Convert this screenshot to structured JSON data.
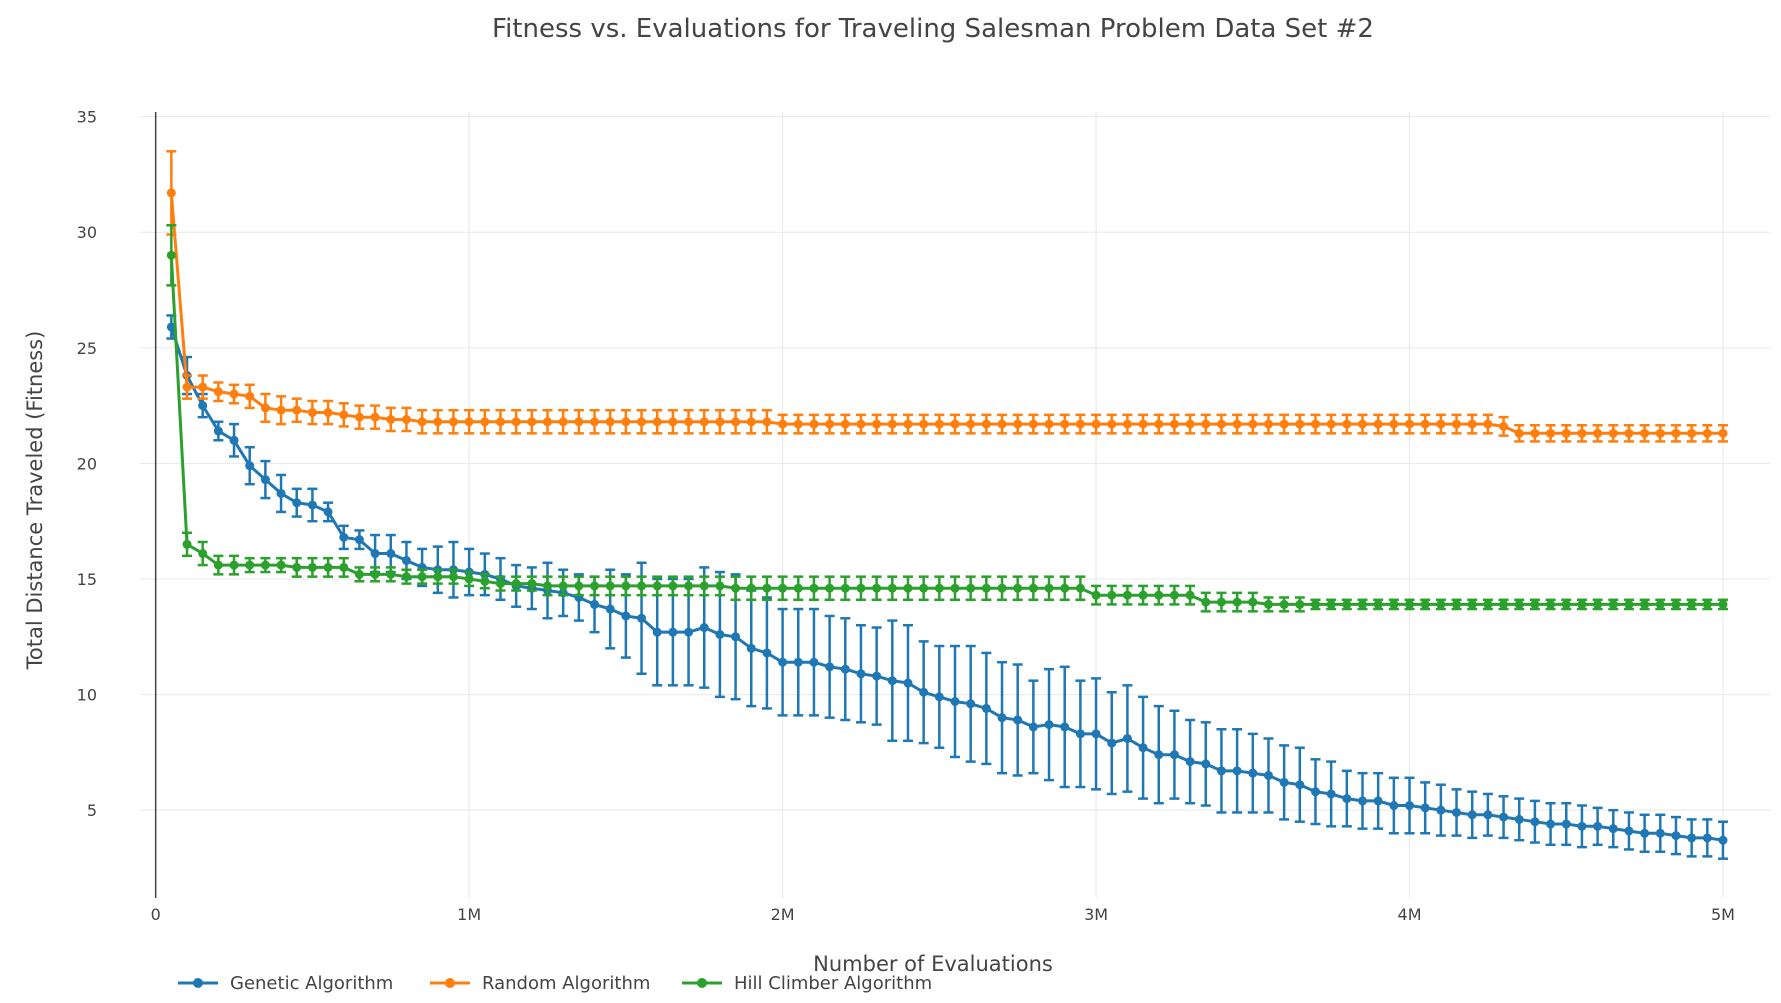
{
  "chart_data": {
    "type": "line",
    "title": "Fitness vs. Evaluations for Traveling Salesman Problem Data Set #2",
    "xlabel": "Number of Evaluations",
    "ylabel": "Total Distance Traveled (Fitness)",
    "xlim": [
      -50000,
      5150000
    ],
    "ylim": [
      1.2,
      35.2
    ],
    "x_ticks": [
      {
        "value": 0,
        "label": "0"
      },
      {
        "value": 1000000,
        "label": "1M"
      },
      {
        "value": 2000000,
        "label": "2M"
      },
      {
        "value": 3000000,
        "label": "3M"
      },
      {
        "value": 4000000,
        "label": "4M"
      },
      {
        "value": 5000000,
        "label": "5M"
      }
    ],
    "y_ticks": [
      {
        "value": 5,
        "label": "5"
      },
      {
        "value": 10,
        "label": "10"
      },
      {
        "value": 15,
        "label": "15"
      },
      {
        "value": 20,
        "label": "20"
      },
      {
        "value": 25,
        "label": "25"
      },
      {
        "value": 30,
        "label": "30"
      },
      {
        "value": 35,
        "label": "35"
      }
    ],
    "grid": true,
    "legend_position": "bottom-left",
    "x": [
      50000,
      100000,
      150000,
      200000,
      250000,
      300000,
      350000,
      400000,
      450000,
      500000,
      550000,
      600000,
      650000,
      700000,
      750000,
      800000,
      850000,
      900000,
      950000,
      1000000,
      1050000,
      1100000,
      1150000,
      1200000,
      1250000,
      1300000,
      1350000,
      1400000,
      1450000,
      1500000,
      1550000,
      1600000,
      1650000,
      1700000,
      1750000,
      1800000,
      1850000,
      1900000,
      1950000,
      2000000,
      2050000,
      2100000,
      2150000,
      2200000,
      2250000,
      2300000,
      2350000,
      2400000,
      2450000,
      2500000,
      2550000,
      2600000,
      2650000,
      2700000,
      2750000,
      2800000,
      2850000,
      2900000,
      2950000,
      3000000,
      3050000,
      3100000,
      3150000,
      3200000,
      3250000,
      3300000,
      3350000,
      3400000,
      3450000,
      3500000,
      3550000,
      3600000,
      3650000,
      3700000,
      3750000,
      3800000,
      3850000,
      3900000,
      3950000,
      4000000,
      4050000,
      4100000,
      4150000,
      4200000,
      4250000,
      4300000,
      4350000,
      4400000,
      4450000,
      4500000,
      4550000,
      4600000,
      4650000,
      4700000,
      4750000,
      4800000,
      4850000,
      4900000,
      4950000,
      5000000
    ],
    "series": [
      {
        "name": "Genetic Algorithm",
        "color": "#1f77b4",
        "values": [
          25.9,
          23.8,
          22.5,
          21.4,
          21.0,
          19.9,
          19.3,
          18.7,
          18.3,
          18.2,
          17.9,
          16.8,
          16.7,
          16.1,
          16.1,
          15.8,
          15.5,
          15.4,
          15.4,
          15.3,
          15.2,
          15.0,
          14.7,
          14.6,
          14.5,
          14.4,
          14.2,
          13.9,
          13.7,
          13.4,
          13.3,
          12.7,
          12.7,
          12.7,
          12.9,
          12.6,
          12.5,
          12.0,
          11.8,
          11.4,
          11.4,
          11.4,
          11.2,
          11.1,
          10.9,
          10.8,
          10.6,
          10.5,
          10.1,
          9.9,
          9.7,
          9.6,
          9.4,
          9.0,
          8.9,
          8.6,
          8.7,
          8.6,
          8.3,
          8.3,
          7.9,
          8.1,
          7.7,
          7.4,
          7.4,
          7.1,
          7.0,
          6.7,
          6.7,
          6.6,
          6.5,
          6.2,
          6.1,
          5.8,
          5.7,
          5.5,
          5.4,
          5.4,
          5.2,
          5.2,
          5.1,
          5.0,
          4.9,
          4.8,
          4.8,
          4.7,
          4.6,
          4.5,
          4.4,
          4.4,
          4.3,
          4.3,
          4.2,
          4.1,
          4.0,
          4.0,
          3.9,
          3.8,
          3.8,
          3.7
        ],
        "error": [
          0.5,
          0.8,
          0.5,
          0.4,
          0.7,
          0.8,
          0.8,
          0.8,
          0.6,
          0.7,
          0.4,
          0.5,
          0.4,
          0.8,
          0.8,
          0.8,
          0.8,
          1.0,
          1.2,
          1.0,
          0.9,
          0.9,
          0.9,
          0.9,
          1.2,
          1.0,
          1.0,
          1.2,
          1.7,
          1.8,
          2.4,
          2.3,
          2.3,
          2.3,
          2.6,
          2.7,
          2.7,
          2.5,
          2.4,
          2.3,
          2.3,
          2.3,
          2.2,
          2.2,
          2.1,
          2.1,
          2.6,
          2.5,
          2.2,
          2.2,
          2.4,
          2.5,
          2.4,
          2.4,
          2.4,
          2.0,
          2.4,
          2.6,
          2.3,
          2.4,
          2.2,
          2.3,
          2.2,
          2.1,
          1.9,
          1.8,
          1.8,
          1.8,
          1.8,
          1.7,
          1.6,
          1.6,
          1.6,
          1.4,
          1.4,
          1.2,
          1.2,
          1.2,
          1.2,
          1.2,
          1.1,
          1.1,
          1.0,
          1.0,
          0.9,
          0.9,
          0.9,
          0.9,
          0.9,
          0.9,
          0.9,
          0.8,
          0.8,
          0.8,
          0.8,
          0.8,
          0.8,
          0.8,
          0.8,
          0.8
        ]
      },
      {
        "name": "Random Algorithm",
        "color": "#ff7f0e",
        "values": [
          31.7,
          23.3,
          23.3,
          23.1,
          23.0,
          22.9,
          22.4,
          22.3,
          22.3,
          22.2,
          22.2,
          22.1,
          22.0,
          22.0,
          21.9,
          21.9,
          21.8,
          21.8,
          21.8,
          21.8,
          21.8,
          21.8,
          21.8,
          21.8,
          21.8,
          21.8,
          21.8,
          21.8,
          21.8,
          21.8,
          21.8,
          21.8,
          21.8,
          21.8,
          21.8,
          21.8,
          21.8,
          21.8,
          21.8,
          21.7,
          21.7,
          21.7,
          21.7,
          21.7,
          21.7,
          21.7,
          21.7,
          21.7,
          21.7,
          21.7,
          21.7,
          21.7,
          21.7,
          21.7,
          21.7,
          21.7,
          21.7,
          21.7,
          21.7,
          21.7,
          21.7,
          21.7,
          21.7,
          21.7,
          21.7,
          21.7,
          21.7,
          21.7,
          21.7,
          21.7,
          21.7,
          21.7,
          21.7,
          21.7,
          21.7,
          21.7,
          21.7,
          21.7,
          21.7,
          21.7,
          21.7,
          21.7,
          21.7,
          21.7,
          21.7,
          21.6,
          21.3,
          21.3,
          21.3,
          21.3,
          21.3,
          21.3,
          21.3,
          21.3,
          21.3,
          21.3,
          21.3,
          21.3,
          21.3,
          21.3
        ],
        "error": [
          1.8,
          0.5,
          0.5,
          0.4,
          0.4,
          0.5,
          0.6,
          0.6,
          0.5,
          0.5,
          0.5,
          0.5,
          0.5,
          0.5,
          0.5,
          0.5,
          0.5,
          0.5,
          0.5,
          0.5,
          0.5,
          0.5,
          0.5,
          0.5,
          0.5,
          0.5,
          0.5,
          0.5,
          0.5,
          0.5,
          0.5,
          0.5,
          0.5,
          0.5,
          0.5,
          0.5,
          0.5,
          0.5,
          0.5,
          0.4,
          0.4,
          0.4,
          0.4,
          0.4,
          0.4,
          0.4,
          0.4,
          0.4,
          0.4,
          0.4,
          0.4,
          0.4,
          0.4,
          0.4,
          0.4,
          0.4,
          0.4,
          0.4,
          0.4,
          0.4,
          0.4,
          0.4,
          0.4,
          0.4,
          0.4,
          0.4,
          0.4,
          0.4,
          0.4,
          0.4,
          0.4,
          0.4,
          0.4,
          0.4,
          0.4,
          0.4,
          0.4,
          0.4,
          0.4,
          0.4,
          0.4,
          0.4,
          0.4,
          0.4,
          0.4,
          0.4,
          0.35,
          0.35,
          0.35,
          0.35,
          0.35,
          0.35,
          0.35,
          0.35,
          0.35,
          0.35,
          0.35,
          0.35,
          0.35,
          0.35
        ]
      },
      {
        "name": "Hill Climber Algorithm",
        "color": "#2ca02c",
        "values": [
          29.0,
          16.5,
          16.1,
          15.6,
          15.6,
          15.6,
          15.6,
          15.6,
          15.5,
          15.5,
          15.5,
          15.5,
          15.2,
          15.2,
          15.2,
          15.1,
          15.1,
          15.1,
          15.1,
          15.0,
          14.9,
          14.8,
          14.8,
          14.8,
          14.7,
          14.7,
          14.7,
          14.7,
          14.7,
          14.7,
          14.7,
          14.7,
          14.7,
          14.7,
          14.7,
          14.7,
          14.6,
          14.6,
          14.6,
          14.6,
          14.6,
          14.6,
          14.6,
          14.6,
          14.6,
          14.6,
          14.6,
          14.6,
          14.6,
          14.6,
          14.6,
          14.6,
          14.6,
          14.6,
          14.6,
          14.6,
          14.6,
          14.6,
          14.6,
          14.3,
          14.3,
          14.3,
          14.3,
          14.3,
          14.3,
          14.3,
          14.0,
          14.0,
          14.0,
          14.0,
          13.9,
          13.9,
          13.9,
          13.9,
          13.9,
          13.9,
          13.9,
          13.9,
          13.9,
          13.9,
          13.9,
          13.9,
          13.9,
          13.9,
          13.9,
          13.9,
          13.9,
          13.9,
          13.9,
          13.9,
          13.9,
          13.9,
          13.9,
          13.9,
          13.9,
          13.9,
          13.9,
          13.9,
          13.9,
          13.9
        ],
        "error": [
          1.3,
          0.5,
          0.5,
          0.4,
          0.4,
          0.3,
          0.3,
          0.3,
          0.4,
          0.4,
          0.4,
          0.4,
          0.3,
          0.3,
          0.3,
          0.3,
          0.3,
          0.3,
          0.3,
          0.3,
          0.3,
          0.3,
          0.3,
          0.3,
          0.4,
          0.4,
          0.4,
          0.4,
          0.4,
          0.4,
          0.4,
          0.4,
          0.4,
          0.4,
          0.4,
          0.4,
          0.5,
          0.5,
          0.5,
          0.5,
          0.5,
          0.5,
          0.5,
          0.5,
          0.5,
          0.5,
          0.5,
          0.5,
          0.5,
          0.5,
          0.5,
          0.5,
          0.5,
          0.5,
          0.5,
          0.5,
          0.5,
          0.5,
          0.5,
          0.4,
          0.4,
          0.4,
          0.4,
          0.4,
          0.4,
          0.4,
          0.4,
          0.4,
          0.4,
          0.4,
          0.3,
          0.3,
          0.3,
          0.2,
          0.2,
          0.2,
          0.2,
          0.2,
          0.2,
          0.2,
          0.2,
          0.2,
          0.2,
          0.2,
          0.2,
          0.2,
          0.2,
          0.2,
          0.2,
          0.2,
          0.2,
          0.2,
          0.2,
          0.2,
          0.2,
          0.2,
          0.2,
          0.2,
          0.2,
          0.2
        ]
      }
    ]
  }
}
